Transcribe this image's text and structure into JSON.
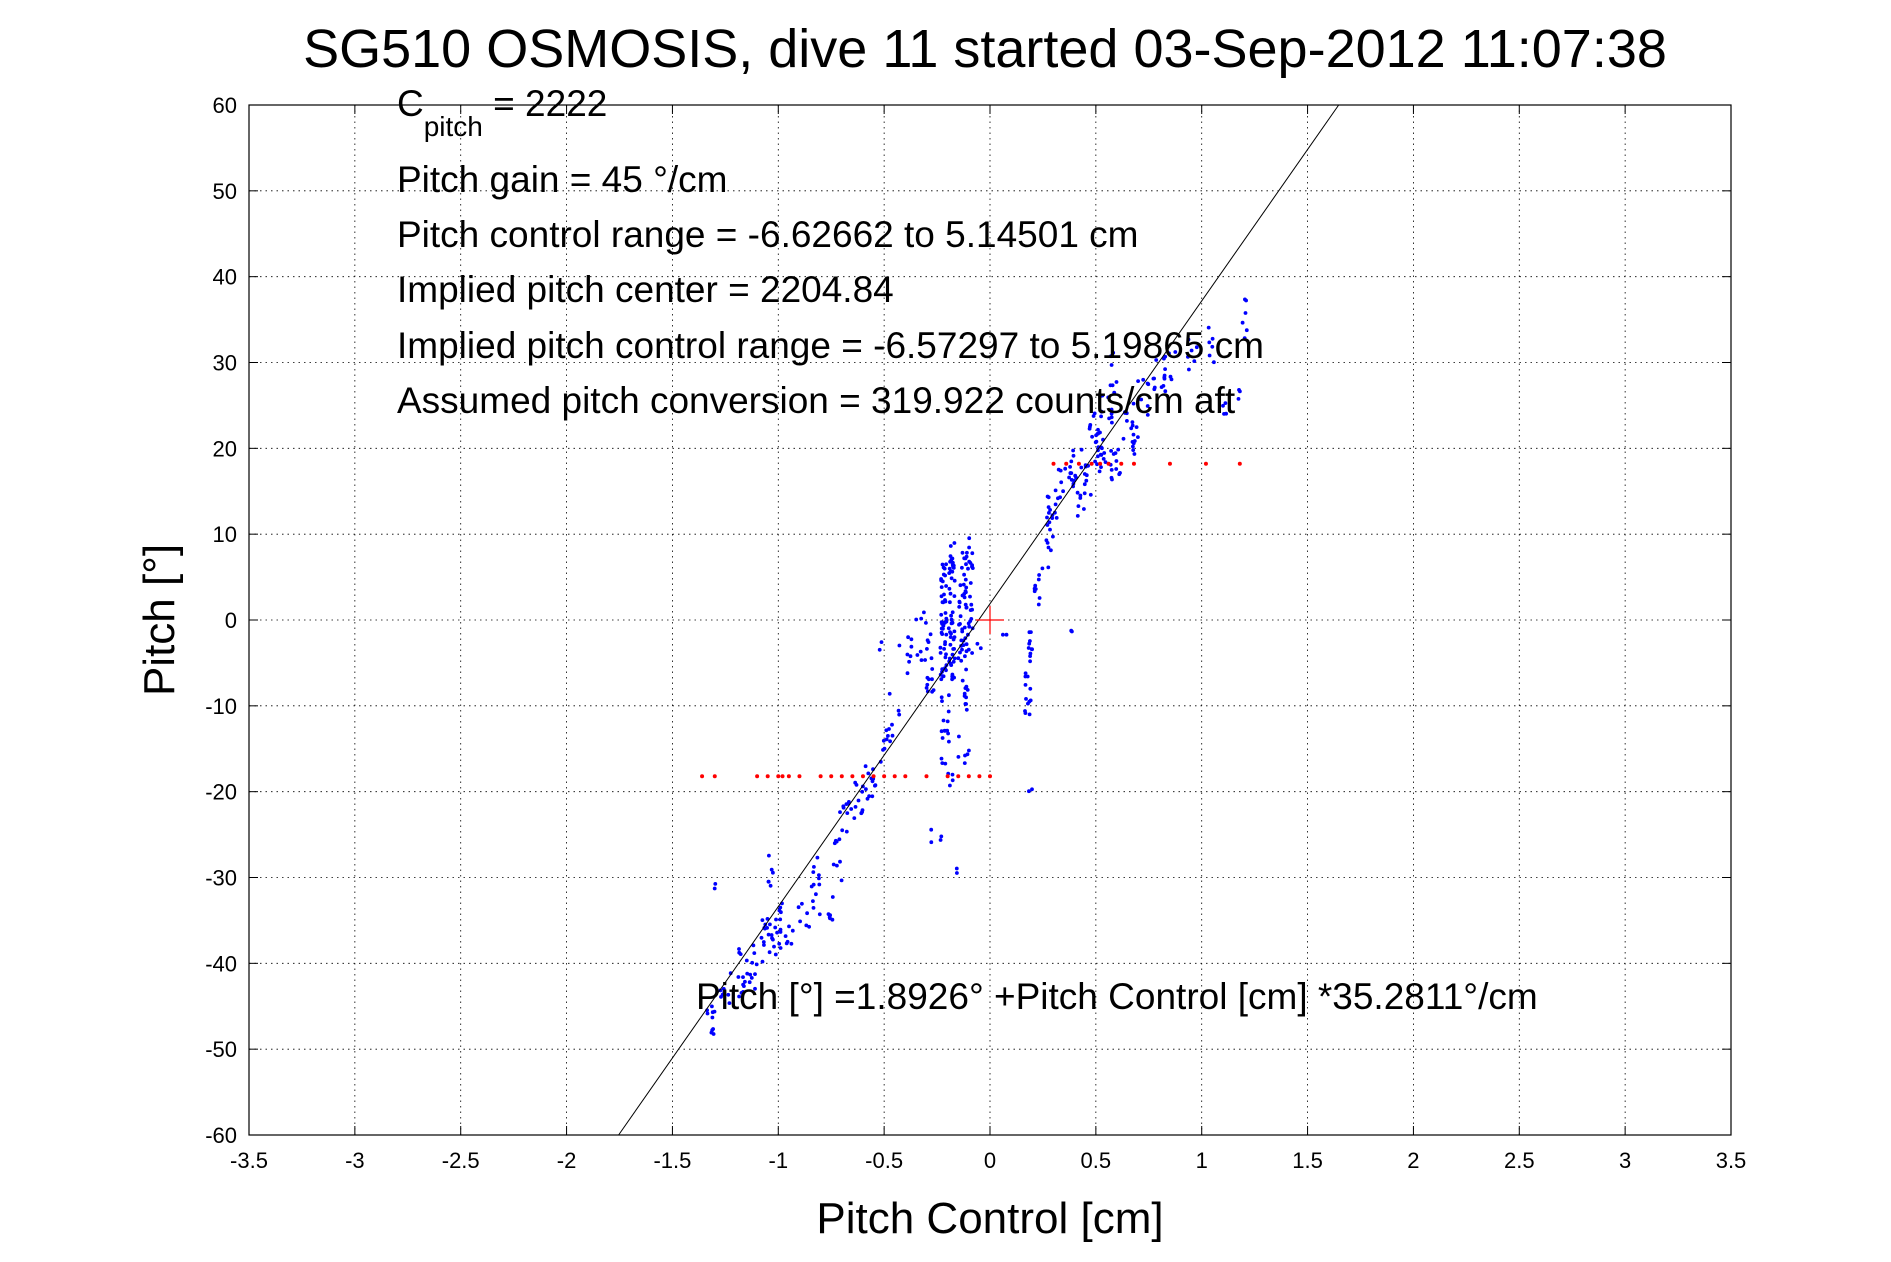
{
  "chart_data": {
    "type": "scatter",
    "title": "SG510 OSMOSIS, dive 11 started 03-Sep-2012 11:07:38",
    "xlabel": "Pitch Control [cm]",
    "ylabel": "Pitch [°]",
    "xlim": [
      -3.5,
      3.5
    ],
    "ylim": [
      -60,
      60
    ],
    "xticks": [
      -3.5,
      -3,
      -2.5,
      -2,
      -1.5,
      -1,
      -0.5,
      0,
      0.5,
      1,
      1.5,
      2,
      2.5,
      3,
      3.5
    ],
    "xtick_labels": [
      "-3.5",
      "-3",
      "-2.5",
      "-2",
      "-1.5",
      "-1",
      "-0.5",
      "0",
      "0.5",
      "1",
      "1.5",
      "2",
      "2.5",
      "3",
      "3.5"
    ],
    "yticks": [
      -60,
      -50,
      -40,
      -30,
      -20,
      -10,
      0,
      10,
      20,
      30,
      40,
      50,
      60
    ],
    "ytick_labels": [
      "-60",
      "-50",
      "-40",
      "-30",
      "-20",
      "-10",
      "0",
      "10",
      "20",
      "30",
      "40",
      "50",
      "60"
    ],
    "grid": true,
    "grid_style": "dotted",
    "annotations": {
      "c_pitch_main": "C",
      "c_pitch_sub": "pitch",
      "c_pitch_value": " = 2222",
      "pitch_gain": "Pitch gain = 45 °/cm",
      "control_range": "Pitch control range = -6.62662 to 5.14501 cm",
      "implied_center": "Implied pitch center = 2204.84",
      "implied_range": "Implied pitch control range = -6.57297 to 5.19865 cm",
      "conversion": "Assumed pitch conversion = 319.922 counts/cm aft",
      "fit_equation": "Pitch [°] =1.8926° +Pitch Control [cm] *35.2811°/cm"
    },
    "fit_line": {
      "intercept": 1.8926,
      "slope": 35.2811,
      "color": "#000000"
    },
    "center_marker": {
      "x": 0,
      "y": 0,
      "color": "#ff0000"
    },
    "series": [
      {
        "color": "#0000ff",
        "clusters": [
          [
            -1.32,
            -47,
            0.025,
            2.0,
            10
          ],
          [
            -1.25,
            -43,
            0.03,
            2.5,
            8
          ],
          [
            -1.18,
            -41,
            0.035,
            3.0,
            12
          ],
          [
            -1.12,
            -40,
            0.03,
            3.0,
            10
          ],
          [
            -1.05,
            -38,
            0.03,
            3.5,
            16
          ],
          [
            -1.0,
            -36,
            0.03,
            3.0,
            14
          ],
          [
            -0.95,
            -37,
            0.02,
            2.0,
            6
          ],
          [
            -1.03,
            -29,
            0.02,
            2.0,
            6
          ],
          [
            -0.88,
            -35,
            0.03,
            2.0,
            6
          ],
          [
            -0.82,
            -31,
            0.03,
            3.5,
            12
          ],
          [
            -0.76,
            -34,
            0.02,
            2.0,
            6
          ],
          [
            -0.72,
            -28,
            0.02,
            2.5,
            8
          ],
          [
            -0.68,
            -23,
            0.03,
            2.0,
            10
          ],
          [
            -0.62,
            -21,
            0.03,
            2.5,
            10
          ],
          [
            -0.56,
            -19,
            0.03,
            2.0,
            12
          ],
          [
            -0.5,
            -15,
            0.03,
            2.5,
            8
          ],
          [
            -0.45,
            -11,
            0.03,
            2.5,
            6
          ],
          [
            -0.4,
            -4,
            0.03,
            3.0,
            8
          ],
          [
            -0.32,
            -2,
            0.03,
            3.0,
            10
          ],
          [
            -0.28,
            -5,
            0.02,
            4.0,
            12
          ],
          [
            -0.22,
            0,
            0.015,
            7.0,
            50
          ],
          [
            -0.18,
            1,
            0.015,
            8.0,
            50
          ],
          [
            -0.13,
            -1,
            0.02,
            9.0,
            40
          ],
          [
            -0.1,
            3,
            0.02,
            7.0,
            30
          ],
          [
            -0.2,
            -14,
            0.03,
            6.0,
            20
          ],
          [
            -0.12,
            -12,
            0.03,
            5.0,
            10
          ],
          [
            0.18,
            -8,
            0.015,
            3.0,
            12
          ],
          [
            0.19,
            -3,
            0.01,
            2.0,
            10
          ],
          [
            0.22,
            3,
            0.015,
            2.0,
            6
          ],
          [
            0.25,
            7,
            0.03,
            2.5,
            6
          ],
          [
            0.28,
            11,
            0.02,
            3.0,
            8
          ],
          [
            0.3,
            13,
            0.03,
            2.5,
            10
          ],
          [
            0.35,
            16,
            0.03,
            2.0,
            10
          ],
          [
            0.38,
            18,
            0.03,
            2.0,
            8
          ],
          [
            0.42,
            14,
            0.03,
            3.0,
            10
          ],
          [
            0.45,
            17,
            0.03,
            3.0,
            10
          ],
          [
            0.5,
            22,
            0.03,
            2.5,
            14
          ],
          [
            0.52,
            19,
            0.03,
            2.0,
            14
          ],
          [
            0.55,
            24,
            0.03,
            3.0,
            10
          ],
          [
            0.6,
            18,
            0.03,
            2.0,
            12
          ],
          [
            0.58,
            29,
            0.02,
            3.0,
            8
          ],
          [
            0.65,
            23,
            0.03,
            2.5,
            10
          ],
          [
            0.68,
            21,
            0.02,
            2.0,
            8
          ],
          [
            0.72,
            26,
            0.03,
            2.5,
            8
          ],
          [
            0.8,
            28,
            0.03,
            2.5,
            10
          ],
          [
            0.85,
            30,
            0.03,
            2.0,
            8
          ],
          [
            0.95,
            31,
            0.03,
            2.0,
            6
          ],
          [
            1.05,
            32,
            0.02,
            2.5,
            6
          ],
          [
            1.1,
            26,
            0.02,
            2.0,
            4
          ],
          [
            1.2,
            35,
            0.015,
            2.5,
            6
          ],
          [
            1.18,
            26,
            0.01,
            1.5,
            3
          ],
          [
            -1.3,
            -31,
            0.01,
            0.5,
            2
          ],
          [
            -0.52,
            -3,
            0.01,
            0.5,
            2
          ],
          [
            0.38,
            -1,
            0.01,
            0.5,
            2
          ],
          [
            0.19,
            -20,
            0.01,
            0.5,
            2
          ],
          [
            -0.25,
            -25,
            0.03,
            1.0,
            4
          ],
          [
            -0.15,
            -29,
            0.01,
            0.5,
            2
          ],
          [
            -0.05,
            -3,
            0.01,
            0.5,
            2
          ],
          [
            0.07,
            -2,
            0.01,
            0.5,
            2
          ]
        ]
      },
      {
        "color": "#ff0000",
        "points_y18": [
          0.3,
          0.36,
          0.42,
          0.48,
          0.52,
          0.56,
          0.62,
          0.68,
          0.85,
          1.02,
          1.18
        ],
        "points_ym18": [
          -1.36,
          -1.3,
          -1.1,
          -1.05,
          -1.0,
          -0.98,
          -0.95,
          -0.9,
          -0.8,
          -0.75,
          -0.7,
          -0.65,
          -0.6,
          -0.55,
          -0.5,
          -0.45,
          -0.4,
          -0.3,
          -0.2,
          -0.15,
          -0.1,
          -0.05,
          0.0
        ]
      }
    ]
  }
}
